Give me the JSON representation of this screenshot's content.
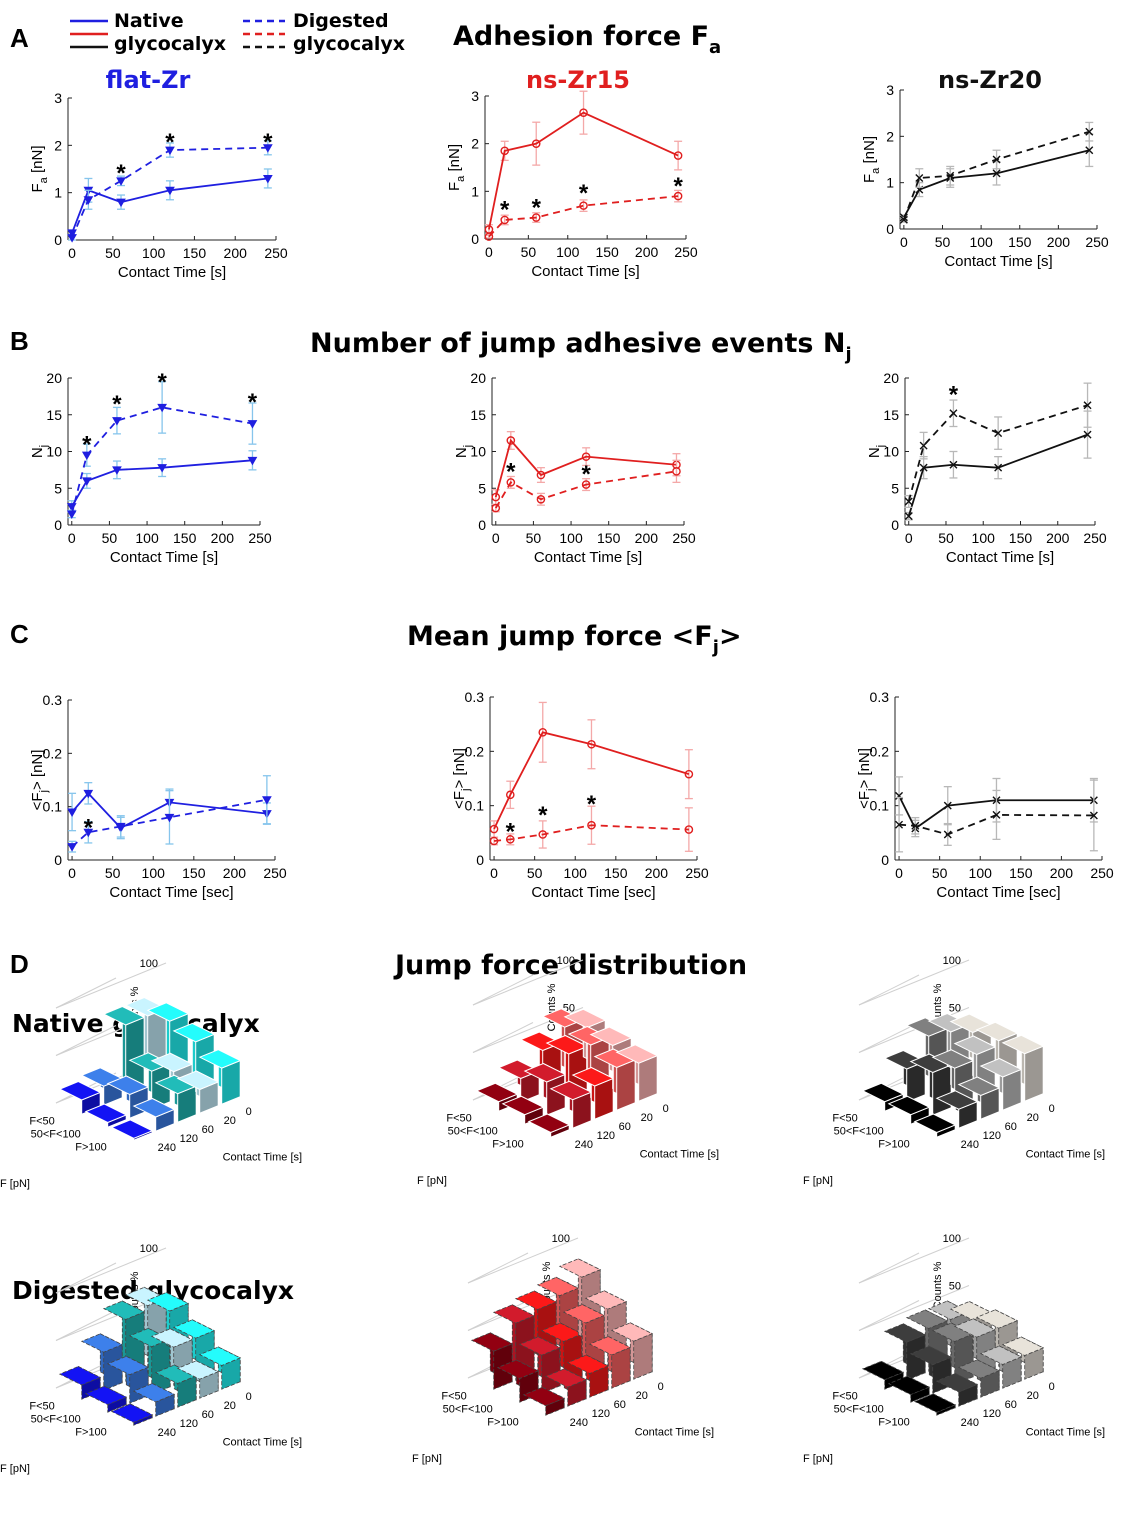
{
  "figure": {
    "panel_letters": [
      "A",
      "B",
      "C",
      "D"
    ],
    "section_titles": {
      "A": "Adhesion force F",
      "A_sub": "a",
      "B": "Number of jump adhesive events N",
      "B_sub": "j",
      "C": "Mean jump force <F",
      "C_sub": "j",
      "C_end": ">",
      "D": "Jump force distribution"
    },
    "column_titles": [
      "flat-Zr",
      "ns-Zr15",
      "ns-Zr20"
    ],
    "column_colors": [
      "#1f1fe0",
      "#e01f1f",
      "#111111"
    ],
    "legend": {
      "native_1": "Native",
      "native_2": "glycocalyx",
      "digested_1": "Digested",
      "digested_2": "glycocalyx",
      "line_colors": [
        "#1f1fe0",
        "#e01f1f",
        "#111111"
      ]
    },
    "row_titles_D": [
      "Native glycocalyx",
      "Digested glycocalyx"
    ]
  },
  "axes_text": {
    "contact_time_s": "Contact Time [s]",
    "contact_time_sec": "Contact Time [sec]",
    "fa_main": "F",
    "fa_sub": "a",
    "fa_unit": " [nN]",
    "nj_main": "N",
    "nj_sub": "j",
    "fj_main": "<F",
    "fj_sub": "j",
    "fj_unit": "> [nN]",
    "counts": "Counts %",
    "f_pn": "F [pN]",
    "star": "*",
    "bins": [
      "F<50",
      "50<F<100",
      "F>100"
    ],
    "times3d": [
      "0",
      "20",
      "60",
      "120",
      "240"
    ],
    "counts_ticks": [
      "0",
      "50",
      "100"
    ]
  },
  "chart_data": [
    {
      "id": "A",
      "type": "line",
      "ylabel": "F_a [nN]",
      "xlabel": "Contact Time [s]",
      "x": [
        0,
        20,
        60,
        120,
        240
      ],
      "xticks": [
        0,
        50,
        100,
        150,
        200,
        250
      ],
      "xlim": [
        -5,
        250
      ],
      "ylim": [
        0,
        3
      ],
      "yticks": [
        0,
        1,
        2,
        3
      ],
      "panels": [
        {
          "col": 0,
          "marker": "triangle",
          "series": [
            {
              "name": "Native glycocalyx",
              "style": "solid",
              "values": [
                0.15,
                1.05,
                0.8,
                1.05,
                1.3
              ],
              "err": [
                0.05,
                0.25,
                0.15,
                0.2,
                0.2
              ]
            },
            {
              "name": "Digested glycocalyx",
              "style": "dashed",
              "values": [
                0.05,
                0.85,
                1.25,
                1.9,
                1.95
              ],
              "err": [
                0.05,
                0.2,
                0.1,
                0.15,
                0.15
              ]
            }
          ],
          "stars": [
            {
              "x": 60,
              "y": 1.5
            },
            {
              "x": 120,
              "y": 2.15
            },
            {
              "x": 240,
              "y": 2.15
            }
          ]
        },
        {
          "col": 1,
          "marker": "circle",
          "series": [
            {
              "name": "Native glycocalyx",
              "style": "solid",
              "values": [
                0.2,
                1.85,
                2.0,
                2.65,
                1.75
              ],
              "err": [
                0.1,
                0.2,
                0.45,
                0.45,
                0.3
              ]
            },
            {
              "name": "Digested glycocalyx",
              "style": "dashed",
              "values": [
                0.05,
                0.4,
                0.45,
                0.7,
                0.9
              ],
              "err": [
                0.03,
                0.1,
                0.1,
                0.12,
                0.12
              ]
            }
          ],
          "stars": [
            {
              "x": 20,
              "y": 0.7
            },
            {
              "x": 60,
              "y": 0.75
            },
            {
              "x": 120,
              "y": 1.05
            },
            {
              "x": 240,
              "y": 1.2
            }
          ]
        },
        {
          "col": 2,
          "marker": "x",
          "series": [
            {
              "name": "Native glycocalyx",
              "style": "solid",
              "values": [
                0.25,
                0.85,
                1.1,
                1.2,
                1.7
              ],
              "err": [
                0.05,
                0.15,
                0.2,
                0.25,
                0.35
              ]
            },
            {
              "name": "Digested glycocalyx",
              "style": "dashed",
              "values": [
                0.2,
                1.1,
                1.15,
                1.5,
                2.1
              ],
              "err": [
                0.05,
                0.2,
                0.2,
                0.2,
                0.2
              ]
            }
          ],
          "stars": []
        }
      ]
    },
    {
      "id": "B",
      "type": "line",
      "ylabel": "N_j",
      "xlabel": "Contact Time [s]",
      "x": [
        0,
        20,
        60,
        120,
        240
      ],
      "xticks": [
        0,
        50,
        100,
        150,
        200,
        250
      ],
      "xlim": [
        -5,
        250
      ],
      "ylim": [
        0,
        20
      ],
      "yticks": [
        0,
        5,
        10,
        15,
        20
      ],
      "panels": [
        {
          "col": 0,
          "marker": "triangle",
          "series": [
            {
              "name": "Native glycocalyx",
              "style": "solid",
              "values": [
                2.5,
                6.0,
                7.5,
                7.8,
                8.8
              ],
              "err": [
                0.8,
                1.0,
                1.2,
                1.2,
                1.3
              ]
            },
            {
              "name": "Digested glycocalyx",
              "style": "dashed",
              "values": [
                1.5,
                9.5,
                14.2,
                16.0,
                13.8
              ],
              "err": [
                0.5,
                1.5,
                1.8,
                3.5,
                2.8
              ]
            }
          ],
          "stars": [
            {
              "x": 20,
              "y": 11.5
            },
            {
              "x": 60,
              "y": 17.0
            },
            {
              "x": 120,
              "y": 20.0
            },
            {
              "x": 240,
              "y": 17.3
            }
          ]
        },
        {
          "col": 1,
          "marker": "circle",
          "series": [
            {
              "name": "Native glycocalyx",
              "style": "solid",
              "values": [
                3.8,
                11.5,
                6.8,
                9.3,
                8.2
              ],
              "err": [
                1.0,
                1.2,
                1.0,
                1.2,
                1.5
              ]
            },
            {
              "name": "Digested glycocalyx",
              "style": "dashed",
              "values": [
                2.3,
                5.8,
                3.5,
                5.5,
                7.3
              ],
              "err": [
                0.5,
                0.8,
                0.8,
                0.8,
                1.5
              ]
            }
          ],
          "stars": [
            {
              "x": 20,
              "y": 7.8
            },
            {
              "x": 120,
              "y": 7.5
            }
          ]
        },
        {
          "col": 2,
          "marker": "x",
          "series": [
            {
              "name": "Native glycocalyx",
              "style": "solid",
              "values": [
                1.2,
                7.8,
                8.2,
                7.8,
                12.3
              ],
              "err": [
                0.5,
                1.5,
                1.8,
                1.5,
                3.2
              ]
            },
            {
              "name": "Digested glycocalyx",
              "style": "dashed",
              "values": [
                3.2,
                10.8,
                15.2,
                12.5,
                16.3
              ],
              "err": [
                0.8,
                1.8,
                1.8,
                2.2,
                3.0
              ]
            }
          ],
          "stars": [
            {
              "x": 60,
              "y": 18.3
            }
          ]
        }
      ]
    },
    {
      "id": "C",
      "type": "line",
      "ylabel": "<F_j> [nN]",
      "xlabel": "Contact Time [sec]",
      "x": [
        0,
        20,
        60,
        120,
        240
      ],
      "xticks": [
        0,
        50,
        100,
        150,
        200,
        250
      ],
      "xlim": [
        -5,
        250
      ],
      "ylim": [
        0,
        0.3
      ],
      "yticks": [
        0,
        0.1,
        0.2,
        0.3
      ],
      "panels": [
        {
          "col": 0,
          "marker": "triangle",
          "series": [
            {
              "name": "Native glycocalyx",
              "style": "solid",
              "values": [
                0.09,
                0.125,
                0.06,
                0.108,
                0.087
              ],
              "err": [
                0.035,
                0.02,
                0.02,
                0.025,
                0.02
              ]
            },
            {
              "name": "Digested glycocalyx",
              "style": "dashed",
              "values": [
                0.025,
                0.052,
                0.063,
                0.08,
                0.113
              ],
              "err": [
                0.01,
                0.02,
                0.02,
                0.05,
                0.045
              ]
            }
          ],
          "stars": [
            {
              "x": 20,
              "y": 0.068
            }
          ]
        },
        {
          "col": 1,
          "marker": "circle",
          "series": [
            {
              "name": "Native glycocalyx",
              "style": "solid",
              "values": [
                0.057,
                0.12,
                0.235,
                0.213,
                0.158
              ],
              "err": [
                0.015,
                0.025,
                0.055,
                0.045,
                0.045
              ]
            },
            {
              "name": "Digested glycocalyx",
              "style": "dashed",
              "values": [
                0.035,
                0.038,
                0.047,
                0.064,
                0.056
              ],
              "err": [
                0.007,
                0.01,
                0.025,
                0.035,
                0.04
              ]
            }
          ],
          "stars": [
            {
              "x": 20,
              "y": 0.06
            },
            {
              "x": 60,
              "y": 0.09
            },
            {
              "x": 120,
              "y": 0.11
            }
          ]
        },
        {
          "col": 2,
          "marker": "x",
          "series": [
            {
              "name": "Native glycocalyx",
              "style": "solid",
              "values": [
                0.118,
                0.058,
                0.1,
                0.11,
                0.11
              ],
              "err": [
                0.035,
                0.015,
                0.035,
                0.04,
                0.04
              ]
            },
            {
              "name": "Digested glycocalyx",
              "style": "dashed",
              "values": [
                0.065,
                0.063,
                0.047,
                0.083,
                0.082
              ],
              "err": [
                0.05,
                0.015,
                0.02,
                0.045,
                0.065
              ]
            }
          ],
          "stars": []
        }
      ]
    },
    {
      "id": "D",
      "type": "bar3d",
      "zlabel": "Counts %",
      "xlabel": "F [pN]",
      "ylabel": "Contact Time [s]",
      "bins": [
        "F<50",
        "50<F<100",
        "F>100"
      ],
      "times": [
        0,
        20,
        60,
        120,
        240
      ],
      "zlim": [
        0,
        100
      ],
      "tables": [
        {
          "row": "Native glycocalyx",
          "col": 0,
          "palette": [
            "#1212e8",
            "#3a7ae0",
            "#1fb3b0",
            "#bfe8f4",
            "#22f0f0"
          ],
          "values": [
            [
              60,
              75,
              75,
              20,
              15
            ],
            [
              52,
              30,
              40,
              25,
              5
            ],
            [
              38,
              25,
              30,
              15,
              2
            ]
          ]
        },
        {
          "row": "Native glycocalyx",
          "col": 1,
          "palette": [
            "#8b0010",
            "#c81a2a",
            "#f01818",
            "#f46060",
            "#f9b0b0"
          ],
          "values": [
            [
              50,
              60,
              45,
              25,
              10
            ],
            [
              45,
              55,
              55,
              35,
              10
            ],
            [
              40,
              45,
              35,
              30,
              5
            ]
          ]
        },
        {
          "row": "Native glycocalyx",
          "col": 2,
          "palette": [
            "#000000",
            "#3a3a3a",
            "#7a7a7a",
            "#b8b8b8",
            "#ddd8d0"
          ],
          "values": [
            [
              45,
              55,
              60,
              35,
              10
            ],
            [
              50,
              45,
              40,
              45,
              10
            ],
            [
              50,
              35,
              25,
              20,
              5
            ]
          ]
        },
        {
          "row": "Digested glycocalyx",
          "col": 0,
          "palette": [
            "#1212e8",
            "#3a7ae0",
            "#1fb3b0",
            "#bfe8f4",
            "#22f0f0"
          ],
          "values": [
            [
              55,
              70,
              65,
              40,
              15
            ],
            [
              40,
              40,
              50,
              30,
              8
            ],
            [
              25,
              20,
              25,
              15,
              3
            ]
          ]
        },
        {
          "row": "Digested glycocalyx",
          "col": 1,
          "palette": [
            "#8b0010",
            "#c81a2a",
            "#f01818",
            "#f46060",
            "#f9b0b0"
          ],
          "values": [
            [
              80,
              70,
              65,
              60,
              40
            ],
            [
              60,
              55,
              45,
              40,
              25
            ],
            [
              40,
              35,
              25,
              20,
              10
            ]
          ]
        },
        {
          "row": "Digested glycocalyx",
          "col": 2,
          "palette": [
            "#000000",
            "#3a3a3a",
            "#7a7a7a",
            "#b8b8b8",
            "#ddd8d0"
          ],
          "values": [
            [
              35,
              45,
              45,
              40,
              10
            ],
            [
              40,
              40,
              45,
              30,
              8
            ],
            [
              25,
              25,
              20,
              15,
              3
            ]
          ]
        }
      ]
    }
  ]
}
